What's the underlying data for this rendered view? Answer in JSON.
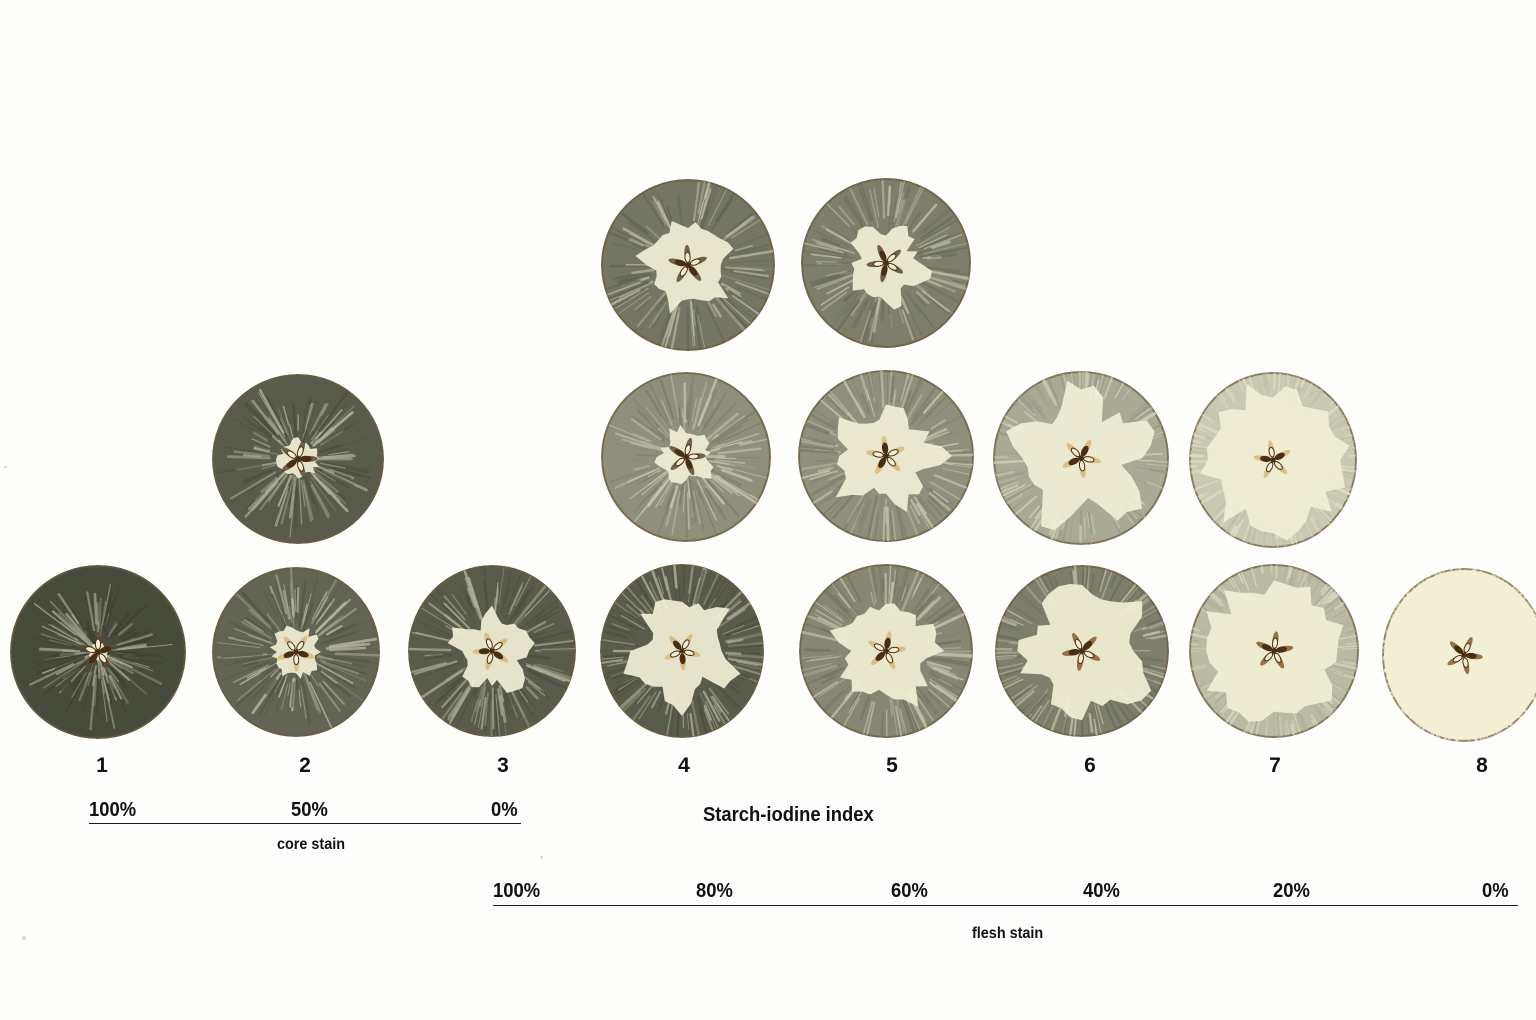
{
  "stage_labels": [
    "1",
    "2",
    "3",
    "4",
    "5",
    "6",
    "7",
    "8"
  ],
  "title": "Starch-iodine index",
  "core_scale": {
    "ticks": [
      "100%",
      "50%",
      "0%"
    ],
    "caption": "core stain"
  },
  "flesh_scale": {
    "ticks": [
      "100%",
      "80%",
      "60%",
      "40%",
      "20%",
      "0%"
    ],
    "caption": "flesh stain"
  },
  "colors": {
    "stain_dark": "#3e4233",
    "stain_mid": "#6b6c58",
    "flesh_light": "#f1efd4",
    "core_tan": "#d8b878",
    "seed_brown": "#4a2e14",
    "text": "#111111"
  }
}
